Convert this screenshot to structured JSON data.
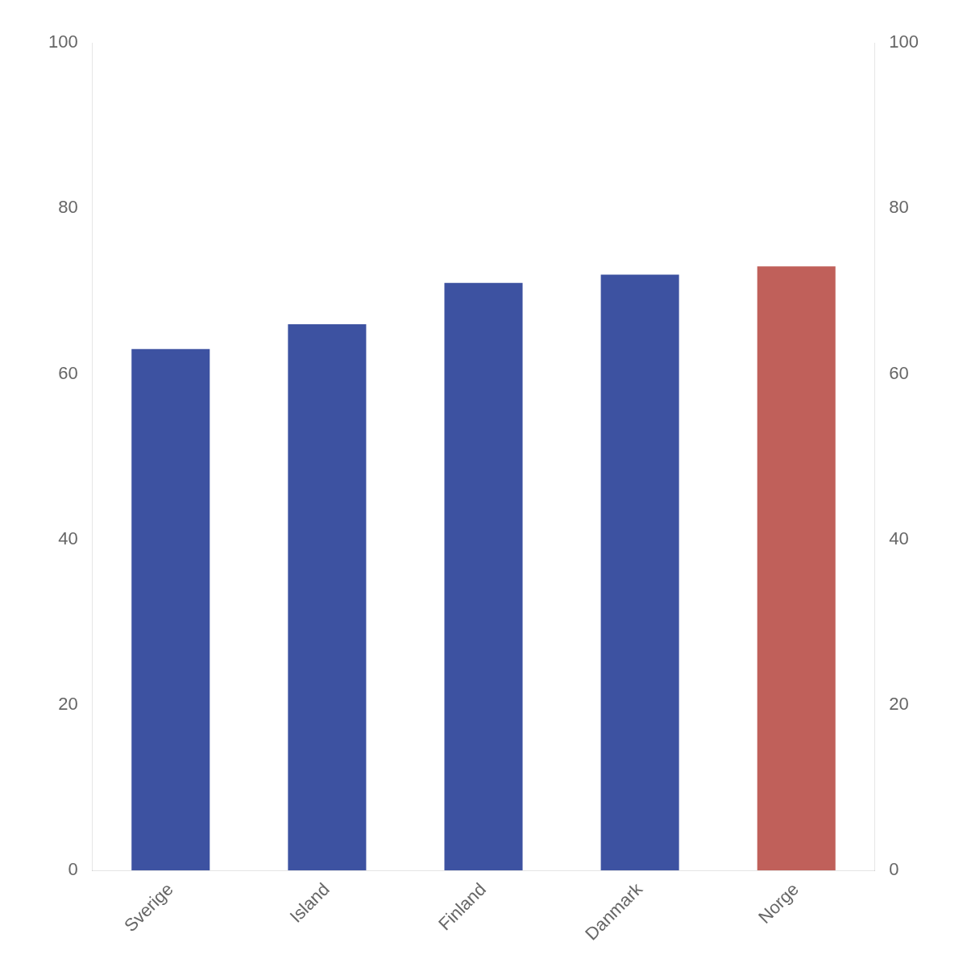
{
  "chart_data": {
    "type": "bar",
    "categories": [
      "Sverige",
      "Island",
      "Finland",
      "Danmark",
      "Norge"
    ],
    "values": [
      63.0,
      66.0,
      71.0,
      72.0,
      73.0
    ],
    "colors": [
      "#3d52a1",
      "#3d52a1",
      "#3d52a1",
      "#3d52a1",
      "#c0605a"
    ],
    "ylim": [
      0,
      100
    ],
    "yticks": [
      0,
      20,
      40,
      60,
      80,
      100
    ],
    "y2lim": [
      0,
      100
    ],
    "y2ticks": [
      0,
      20,
      40,
      60,
      80,
      100
    ],
    "grid": false
  }
}
